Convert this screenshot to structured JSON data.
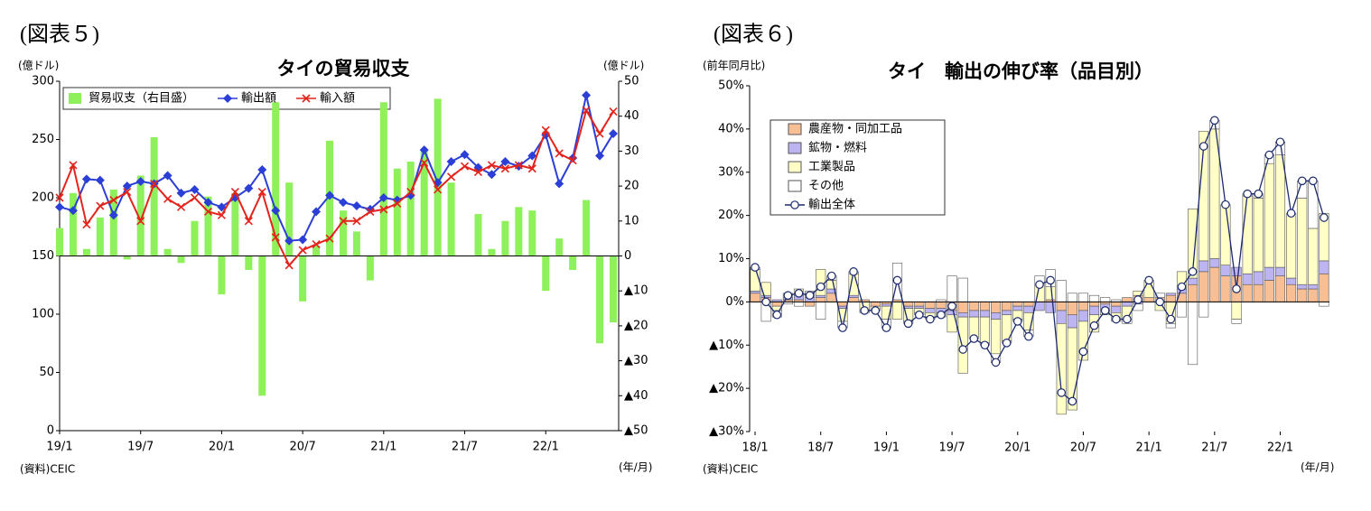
{
  "chart_data": [
    {
      "type": "combo",
      "figure_label": "(図表５)",
      "title": "タイの貿易収支",
      "y_label": "(億ドル)",
      "y2_label": "(億ドル)",
      "x_label": "(年/月)",
      "source": "(資料)CEIC",
      "categories": [
        "19/1",
        null,
        null,
        null,
        null,
        null,
        "19/7",
        null,
        null,
        null,
        null,
        null,
        "20/1",
        null,
        null,
        null,
        null,
        null,
        "20/7",
        null,
        null,
        null,
        null,
        null,
        "21/1",
        null,
        null,
        null,
        null,
        null,
        "21/7",
        null,
        null,
        null,
        null,
        null,
        "22/1",
        null,
        null,
        null,
        null,
        null
      ],
      "ylim": [
        0,
        300
      ],
      "yticks": [
        0,
        50,
        100,
        150,
        200,
        250,
        300
      ],
      "y2lim": [
        -50,
        50
      ],
      "y2ticks": [
        50,
        40,
        30,
        20,
        10,
        0,
        {
          "value": -10,
          "label": "▲10"
        },
        {
          "value": -20,
          "label": "▲20"
        },
        {
          "value": -30,
          "label": "▲30"
        },
        {
          "value": -40,
          "label": "▲40"
        },
        {
          "value": -50,
          "label": "▲50"
        }
      ],
      "series": [
        {
          "name": "貿易収支（右目盛）",
          "type": "bar",
          "axis": "y2",
          "color": "#8ef05a",
          "values": [
            8,
            18,
            2,
            11,
            19,
            -1,
            23,
            34,
            2,
            -2,
            10,
            17,
            -11,
            18,
            -4,
            -40,
            44,
            21,
            -13,
            3,
            33,
            13,
            7,
            -7,
            44,
            25,
            27,
            30,
            45,
            21,
            0,
            12,
            2,
            10,
            14,
            13,
            -10,
            5,
            -4,
            16,
            -25,
            -19
          ]
        },
        {
          "name": "輸出額",
          "type": "line",
          "marker": "diamond",
          "color": "#2b3fd6",
          "values": [
            192,
            189,
            216,
            215,
            185,
            210,
            214,
            212,
            219,
            204,
            207,
            196,
            192,
            200,
            208,
            224,
            189,
            163,
            164,
            188,
            202,
            196,
            193,
            190,
            200,
            198,
            202,
            241,
            213,
            231,
            237,
            226,
            220,
            231,
            227,
            236,
            254,
            212,
            234,
            288,
            236,
            255
          ]
        },
        {
          "name": "輸入額",
          "type": "line",
          "marker": "x",
          "color": "#e3241c",
          "values": [
            200,
            228,
            177,
            193,
            198,
            205,
            180,
            212,
            199,
            192,
            200,
            188,
            185,
            205,
            180,
            205,
            166,
            142,
            155,
            160,
            165,
            180,
            180,
            188,
            190,
            195,
            205,
            230,
            207,
            218,
            227,
            222,
            228,
            225,
            228,
            225,
            258,
            238,
            232,
            275,
            255,
            274
          ]
        }
      ]
    },
    {
      "type": "combo",
      "figure_label": "(図表６)",
      "title": "タイ　輸出の伸び率（品目別）",
      "y_label": "(前年同月比)",
      "x_label": "(年/月)",
      "source": "(資料)CEIC",
      "categories": [
        "18/1",
        null,
        null,
        null,
        null,
        null,
        "18/7",
        null,
        null,
        null,
        null,
        null,
        "19/1",
        null,
        null,
        null,
        null,
        null,
        "19/7",
        null,
        null,
        null,
        null,
        null,
        "20/1",
        null,
        null,
        null,
        null,
        null,
        "20/7",
        null,
        null,
        null,
        null,
        null,
        "21/1",
        null,
        null,
        null,
        null,
        null,
        "21/7",
        null,
        null,
        null,
        null,
        null,
        "22/1",
        null,
        null,
        null,
        null
      ],
      "ylim": [
        -30,
        50
      ],
      "yticks": [
        {
          "value": 50,
          "label": "50%"
        },
        {
          "value": 40,
          "label": "40%"
        },
        {
          "value": 30,
          "label": "30%"
        },
        {
          "value": 20,
          "label": "20%"
        },
        {
          "value": 10,
          "label": "10%"
        },
        {
          "value": 0,
          "label": "0%"
        },
        {
          "value": -10,
          "label": "▲10%"
        },
        {
          "value": -20,
          "label": "▲20%"
        },
        {
          "value": -30,
          "label": "▲30%"
        }
      ],
      "series": [
        {
          "name": "農産物・同加工品",
          "type": "bar",
          "color": "#f8bf95",
          "values": [
            2,
            1,
            -1,
            0.5,
            0.5,
            -1,
            1,
            2,
            -1,
            1,
            0.5,
            -1,
            -0.5,
            0.5,
            -1,
            -1,
            -1.5,
            -1.5,
            -2,
            -2.5,
            -2,
            -2,
            -2.5,
            -2,
            -1,
            -1,
            0,
            0.5,
            -2,
            -3,
            -2,
            -1,
            -0.5,
            -1,
            1,
            1.5,
            1,
            1,
            1.5,
            2,
            4,
            7,
            8,
            6,
            6,
            4,
            4,
            5,
            6,
            4,
            3,
            3,
            6.5
          ]
        },
        {
          "name": "鉱物・燃料",
          "type": "bar",
          "color": "#bdb4f2",
          "values": [
            0.5,
            0.5,
            0.5,
            0.5,
            1,
            1,
            0.5,
            1,
            -0.5,
            0.5,
            0,
            0,
            -0.5,
            0,
            -0.5,
            -0.5,
            -1,
            -1,
            -1,
            -1,
            -1.5,
            -1.5,
            -1.5,
            -1,
            -1,
            -1.5,
            -2,
            -2.5,
            -3,
            -3,
            -2.5,
            -2,
            -1.5,
            -1.5,
            -1,
            -0.5,
            0,
            0,
            0.5,
            1,
            1.5,
            2.5,
            2,
            2.5,
            2,
            2.5,
            3,
            3,
            2,
            1.5,
            1,
            1,
            3
          ]
        },
        {
          "name": "工業製品",
          "type": "bar",
          "color": "#ffffc6",
          "values": [
            5,
            3,
            -1,
            1,
            1.5,
            1,
            6,
            2,
            -3,
            5,
            -2,
            -1,
            -3,
            -4,
            -3,
            -1,
            -1,
            -1,
            -4,
            -13,
            -5,
            -6,
            -8,
            -6,
            -2,
            -4,
            4,
            3,
            -21,
            -19,
            -9,
            -4,
            -1,
            -2,
            -3,
            1,
            4,
            -2,
            -5,
            4,
            16,
            30,
            30,
            14,
            -4,
            18,
            17,
            24,
            26,
            15,
            20,
            13,
            11
          ]
        },
        {
          "name": "その他",
          "type": "bar",
          "color": "#ffffff",
          "values": [
            0.5,
            -4.5,
            -1.5,
            -0.5,
            -1,
            0.5,
            -4,
            1,
            -1.5,
            0.5,
            -0.5,
            0,
            -2,
            8.5,
            -0.5,
            -0.5,
            -0.5,
            0.5,
            6,
            5.5,
            0,
            -0.5,
            -2,
            -0.5,
            -0.5,
            -1.5,
            2,
            4,
            5,
            2,
            2,
            1.5,
            1,
            0.5,
            -1,
            -1.5,
            0,
            1,
            -1,
            -3.5,
            -14.5,
            -3.5,
            2,
            0,
            -1,
            0.5,
            1,
            2,
            3,
            0,
            4,
            11,
            -1
          ]
        },
        {
          "name": "輸出全体",
          "type": "line",
          "marker": "circle",
          "color": "#1c2a6e",
          "values": [
            8,
            0,
            -3,
            1.5,
            2,
            1.5,
            3.5,
            6,
            -6,
            7,
            -2,
            -2,
            -6,
            5,
            -5,
            -3,
            -4,
            -3,
            -1,
            -11,
            -8.5,
            -10,
            -14,
            -9.5,
            -4.5,
            -8,
            4,
            5,
            -21,
            -23,
            -11.5,
            -5.5,
            -2,
            -4,
            -4,
            0.5,
            5,
            0,
            -4,
            3.5,
            7,
            36,
            42,
            22.5,
            3,
            25,
            25,
            34,
            37,
            20.5,
            28,
            28,
            19.5
          ]
        }
      ]
    }
  ]
}
